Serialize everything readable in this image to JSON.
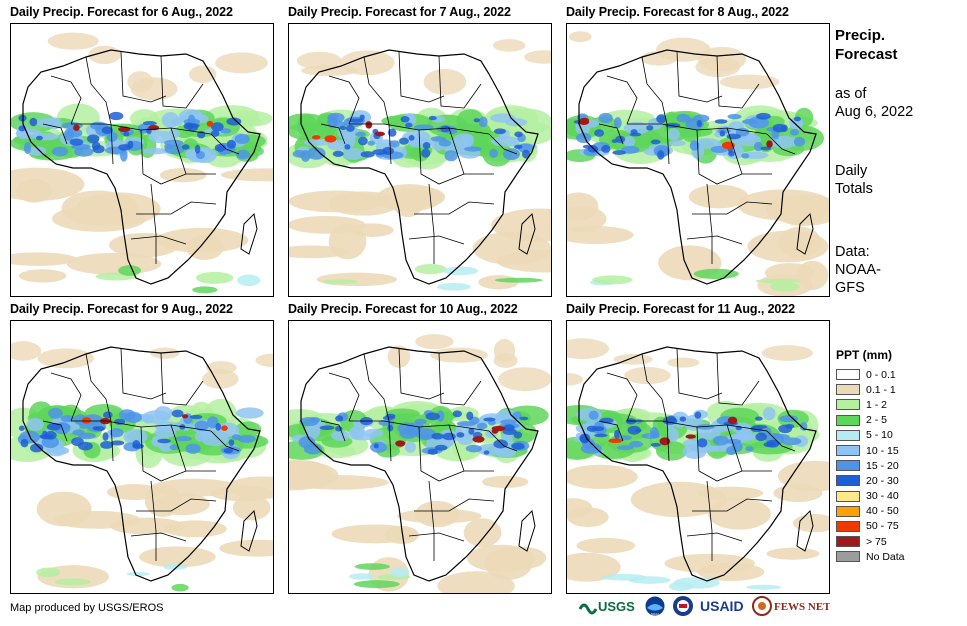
{
  "panels": [
    {
      "title": "Daily Precip. Forecast for 6 Aug., 2022"
    },
    {
      "title": "Daily Precip. Forecast for 7 Aug., 2022"
    },
    {
      "title": "Daily Precip. Forecast for 8 Aug., 2022"
    },
    {
      "title": "Daily Precip. Forecast for 9 Aug., 2022"
    },
    {
      "title": "Daily Precip. Forecast for 10 Aug., 2022"
    },
    {
      "title": "Daily Precip. Forecast for 11 Aug., 2022"
    }
  ],
  "sidebar": {
    "title_line1": "Precip.",
    "title_line2": "Forecast",
    "asof_line1": "as of",
    "asof_line2": "Aug 6, 2022",
    "totals_line1": "Daily",
    "totals_line2": "Totals",
    "data_line1": "Data:",
    "data_line2": "NOAA-",
    "data_line3": "GFS"
  },
  "legend": {
    "title": "PPT (mm)",
    "items": [
      {
        "label": "0 - 0.1",
        "color": "#ffffff"
      },
      {
        "label": "0.1 - 1",
        "color": "#ecd9b8"
      },
      {
        "label": "1 - 2",
        "color": "#b4f0a0"
      },
      {
        "label": "2 - 5",
        "color": "#5ed65a"
      },
      {
        "label": "5 - 10",
        "color": "#b5ecf2"
      },
      {
        "label": "10 - 15",
        "color": "#8fc4f2"
      },
      {
        "label": "15 - 20",
        "color": "#4d94e8"
      },
      {
        "label": "20 - 30",
        "color": "#1f5fd6"
      },
      {
        "label": "30 - 40",
        "color": "#ffe88a"
      },
      {
        "label": "40 - 50",
        "color": "#ffa200"
      },
      {
        "label": "50 - 75",
        "color": "#ee3a00"
      },
      {
        "label": "> 75",
        "color": "#a01a1a"
      },
      {
        "label": "No Data",
        "color": "#9c9c9c"
      }
    ]
  },
  "credit": "Map produced by USGS/EROS",
  "logos": {
    "usgs": "USGS",
    "noaa": "NOAA",
    "usaid": "USAID",
    "fewsnet": "FEWS NET"
  }
}
